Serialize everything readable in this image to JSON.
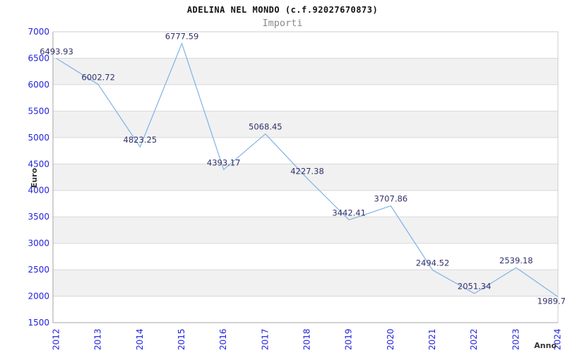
{
  "header": {
    "title": "ADELINA NEL MONDO (c.f.92027670873)",
    "subtitle": "Importi"
  },
  "chart_data": {
    "type": "line",
    "title": "ADELINA NEL MONDO (c.f.92027670873)",
    "subtitle": "Importi",
    "xlabel": "Anno",
    "ylabel": "Euro",
    "categories": [
      "2012",
      "2013",
      "2014",
      "2015",
      "2016",
      "2017",
      "2018",
      "2019",
      "2020",
      "2021",
      "2022",
      "2023",
      "2024"
    ],
    "values": [
      6493.93,
      6002.72,
      4823.25,
      6777.59,
      4393.17,
      5068.45,
      4227.38,
      3442.41,
      3707.86,
      2494.52,
      2051.34,
      2539.18,
      1989.7
    ],
    "point_labels": [
      "6493.93",
      "6002.72",
      "4823.25",
      "6777.59",
      "4393.17",
      "5068.45",
      "4227.38",
      "3442.41",
      "3707.86",
      "2494.52",
      "2051.34",
      "2539.18",
      "1989.7"
    ],
    "ylim": [
      1500,
      7000
    ],
    "ytick_step": 500,
    "yticks": [
      7000,
      6500,
      6000,
      5500,
      5000,
      4500,
      4000,
      3500,
      3000,
      2500,
      2000,
      1500
    ],
    "grid": "horizontal",
    "band_fill": "alternating-gray",
    "legend": "none",
    "colors": {
      "line": "#7fb2e6",
      "tick_label": "#2222dd",
      "value_label": "#31316b",
      "band": "#f1f1f1",
      "grid": "#d8d8d8",
      "frame": "#cccccc",
      "axis": "#a6a6a6",
      "title": "#111111",
      "subtitle": "#8a8a8a",
      "axis_title": "#333333"
    }
  }
}
